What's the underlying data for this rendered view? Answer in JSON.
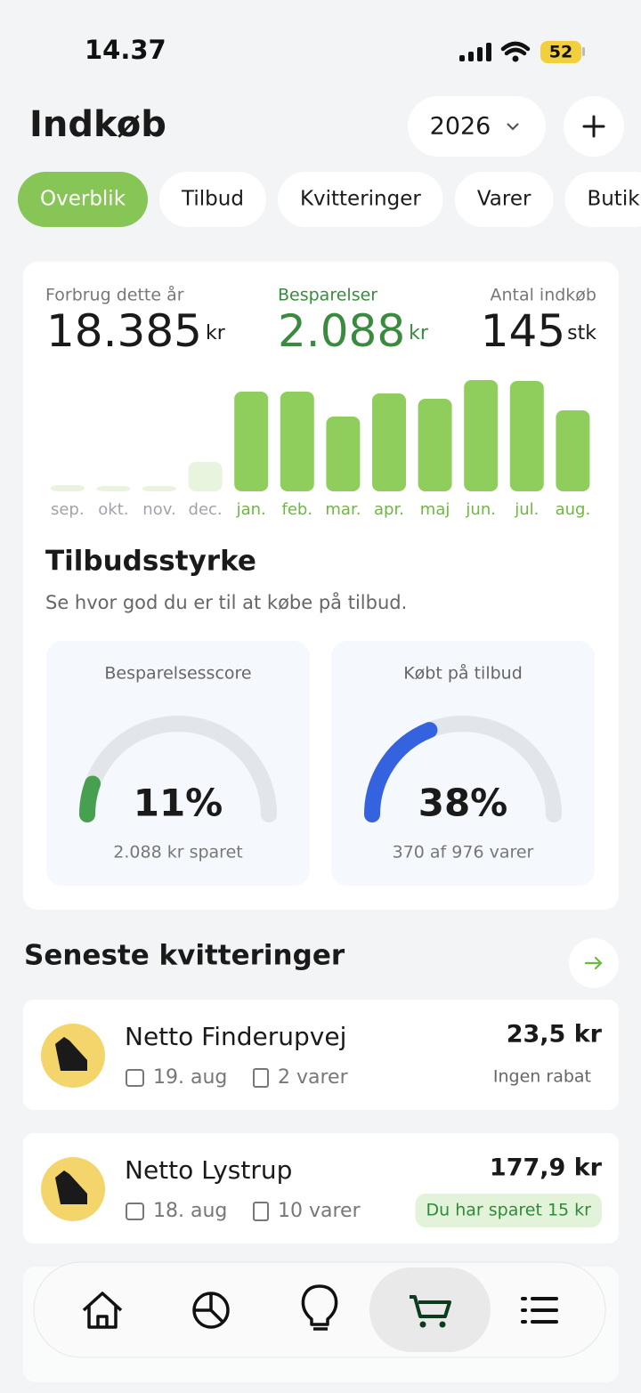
{
  "status_bar": {
    "time": "14.37",
    "battery": "52"
  },
  "header": {
    "title": "Indkøb",
    "year": "2026"
  },
  "tabs": [
    "Overblik",
    "Tilbud",
    "Kvitteringer",
    "Varer",
    "Butik"
  ],
  "summary": [
    {
      "label": "Forbrug dette år",
      "value": "18.385",
      "unit": "kr"
    },
    {
      "label": "Besparelser",
      "value": "2.088",
      "unit": "kr"
    },
    {
      "label": "Antal indkøb",
      "value": "145",
      "unit": "stk"
    }
  ],
  "chart_data": {
    "type": "bar",
    "categories": [
      "sep.",
      "okt.",
      "nov.",
      "dec.",
      "jan.",
      "feb.",
      "mar.",
      "apr.",
      "maj",
      "jun.",
      "jul.",
      "aug."
    ],
    "values": [
      7,
      6,
      6,
      33,
      112,
      112,
      84,
      110,
      104,
      125,
      124,
      91
    ],
    "colors": [
      "#e9f4df",
      "#e9f4df",
      "#e9f4df",
      "#e9f4df",
      "#8fce5c",
      "#8fce5c",
      "#8fce5c",
      "#8fce5c",
      "#8fce5c",
      "#8fce5c",
      "#8fce5c",
      "#8fce5c"
    ],
    "label_colors": [
      "#a0a4aa",
      "#a0a4aa",
      "#a0a4aa",
      "#a0a4aa",
      "#6cb842",
      "#6cb842",
      "#6cb842",
      "#6cb842",
      "#6cb842",
      "#6cb842",
      "#6cb842",
      "#6cb842"
    ]
  },
  "offer_strength": {
    "title": "Tilbudsstyrke",
    "subtitle": "Se hvor god du er til at købe på tilbud.",
    "gauges": [
      {
        "title": "Besparelsesscore",
        "value": 11,
        "value_label": "11%",
        "caption": "2.088 kr sparet",
        "color": "#46a04f"
      },
      {
        "title": "Købt på tilbud",
        "value": 38,
        "value_label": "38%",
        "caption": "370 af 976 varer",
        "color": "#3563e0"
      }
    ]
  },
  "receipts": {
    "title": "Seneste kvitteringer",
    "items": [
      {
        "store": "Netto Finderupvej",
        "date": "19. aug",
        "count": "2 varer",
        "amount": "23,5 kr",
        "note": "Ingen rabat"
      },
      {
        "store": "Netto Lystrup",
        "date": "18. aug",
        "count": "10 varer",
        "amount": "177,9 kr",
        "note": "Du har sparet 15 kr"
      }
    ]
  }
}
